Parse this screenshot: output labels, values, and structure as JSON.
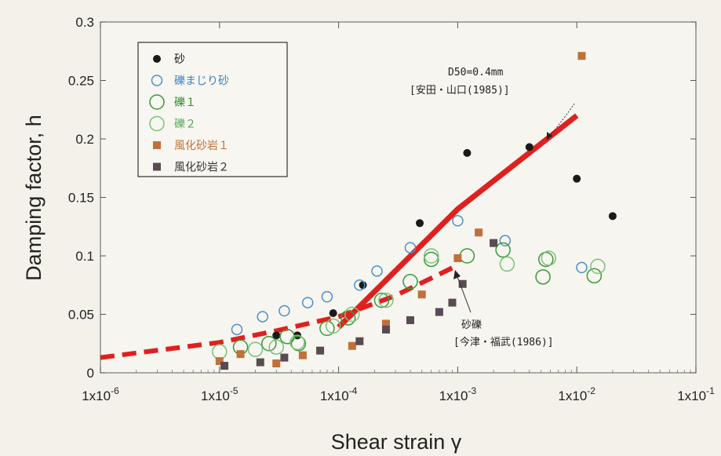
{
  "chart_data": {
    "type": "scatter",
    "title": "",
    "xlabel": "Shear strain γ",
    "ylabel": "Damping factor, h",
    "x_scale": "log",
    "xlim": [
      1e-06,
      0.1
    ],
    "ylim": [
      0,
      0.3
    ],
    "x_tick_values": [
      1e-06,
      1e-05,
      0.0001,
      0.001,
      0.01,
      0.1
    ],
    "x_ticks": [
      {
        "base": "1x10",
        "exp": "-6"
      },
      {
        "base": "1x10",
        "exp": "-5"
      },
      {
        "base": "1x10",
        "exp": "-4"
      },
      {
        "base": "1x10",
        "exp": "-3"
      },
      {
        "base": "1x10",
        "exp": "-2"
      },
      {
        "base": "1x10",
        "exp": "-1"
      }
    ],
    "y_ticks": [
      "0",
      "0.05",
      "0.1",
      "0.15",
      "0.2",
      "0.25",
      "0.3"
    ],
    "y_tick_values": [
      0,
      0.05,
      0.1,
      0.15,
      0.2,
      0.25,
      0.3
    ],
    "legend_position": "top-left",
    "series": [
      {
        "name": "砂",
        "marker": "filled-circle",
        "color": "#1a1a1a",
        "label_color": "#1a1a1a",
        "points": [
          [
            3e-05,
            0.032
          ],
          [
            4.5e-05,
            0.032
          ],
          [
            9e-05,
            0.051
          ],
          [
            0.00016,
            0.075
          ],
          [
            0.00048,
            0.128
          ],
          [
            0.0012,
            0.188
          ],
          [
            0.004,
            0.193
          ],
          [
            0.01,
            0.166
          ],
          [
            0.02,
            0.134
          ]
        ]
      },
      {
        "name": "礫まじり砂",
        "marker": "open-circle-small",
        "color": "#4a90c8",
        "label_color": "#3b82c4",
        "points": [
          [
            1.4e-05,
            0.037
          ],
          [
            2.3e-05,
            0.048
          ],
          [
            3.5e-05,
            0.053
          ],
          [
            5.5e-05,
            0.06
          ],
          [
            8e-05,
            0.065
          ],
          [
            0.00015,
            0.075
          ],
          [
            0.00021,
            0.087
          ],
          [
            0.0004,
            0.107
          ],
          [
            0.001,
            0.13
          ],
          [
            0.0025,
            0.113
          ],
          [
            0.011,
            0.09
          ]
        ]
      },
      {
        "name": "礫１",
        "marker": "open-circle-large",
        "color": "#3a9a3a",
        "label_color": "#2e8b2e",
        "points": [
          [
            1.5e-05,
            0.022
          ],
          [
            2.6e-05,
            0.025
          ],
          [
            3.7e-05,
            0.031
          ],
          [
            4.6e-05,
            0.025
          ],
          [
            8e-05,
            0.038
          ],
          [
            0.00012,
            0.047
          ],
          [
            0.00023,
            0.062
          ],
          [
            0.0004,
            0.078
          ],
          [
            0.0006,
            0.097
          ],
          [
            0.0012,
            0.1
          ],
          [
            0.0024,
            0.105
          ],
          [
            0.0055,
            0.097
          ],
          [
            0.0052,
            0.082
          ],
          [
            0.014,
            0.083
          ]
        ]
      },
      {
        "name": "礫２",
        "marker": "open-circle-large-light",
        "color": "#7ac27a",
        "label_color": "#5aa85a",
        "points": [
          [
            1e-05,
            0.018
          ],
          [
            2e-05,
            0.02
          ],
          [
            3e-05,
            0.022
          ],
          [
            4.5e-05,
            0.026
          ],
          [
            9e-05,
            0.04
          ],
          [
            0.00013,
            0.05
          ],
          [
            0.00025,
            0.062
          ],
          [
            0.0006,
            0.1
          ],
          [
            0.0026,
            0.093
          ],
          [
            0.0058,
            0.098
          ],
          [
            0.015,
            0.091
          ]
        ]
      },
      {
        "name": "風化砂岩１",
        "marker": "filled-square",
        "color": "#c0703a",
        "label_color": "#c0703a",
        "points": [
          [
            1e-05,
            0.01
          ],
          [
            1.5e-05,
            0.016
          ],
          [
            3e-05,
            0.008
          ],
          [
            5e-05,
            0.015
          ],
          [
            0.00013,
            0.023
          ],
          [
            0.00025,
            0.042
          ],
          [
            0.0005,
            0.067
          ],
          [
            0.001,
            0.098
          ],
          [
            0.0015,
            0.12
          ],
          [
            0.011,
            0.271
          ]
        ]
      },
      {
        "name": "風化砂岩２",
        "marker": "filled-square",
        "color": "#5a4a52",
        "label_color": "#333333",
        "points": [
          [
            1.1e-05,
            0.006
          ],
          [
            2.2e-05,
            0.009
          ],
          [
            3.5e-05,
            0.013
          ],
          [
            7e-05,
            0.019
          ],
          [
            0.00015,
            0.027
          ],
          [
            0.00025,
            0.037
          ],
          [
            0.0004,
            0.045
          ],
          [
            0.0007,
            0.052
          ],
          [
            0.0009,
            0.06
          ],
          [
            0.0011,
            0.076
          ],
          [
            0.002,
            0.111
          ]
        ]
      }
    ],
    "lines": [
      {
        "name": "D50=0.4mm [安田・山口(1985)]",
        "style": "solid",
        "color": "#e0201e",
        "points": [
          [
            0.0001,
            0.039
          ],
          [
            0.001,
            0.14
          ],
          [
            0.01,
            0.22
          ]
        ]
      },
      {
        "name": "砂礫 [今津・福武(1986)]",
        "style": "dashed",
        "color": "#e0201e",
        "points": [
          [
            1e-06,
            0.013
          ],
          [
            1e-05,
            0.026
          ],
          [
            3e-05,
            0.036
          ],
          [
            0.0001,
            0.048
          ],
          [
            0.0003,
            0.066
          ],
          [
            0.001,
            0.092
          ]
        ]
      }
    ],
    "annotations": [
      {
        "line1": "D50=0.4mm",
        "line2": "[安田・山口(1985)]",
        "arrow_to": [
          0.0055,
          0.197
        ]
      },
      {
        "line1": "砂礫",
        "line2": "[今津・福武(1986)]",
        "arrow_to": [
          0.00095,
          0.09
        ]
      }
    ]
  }
}
